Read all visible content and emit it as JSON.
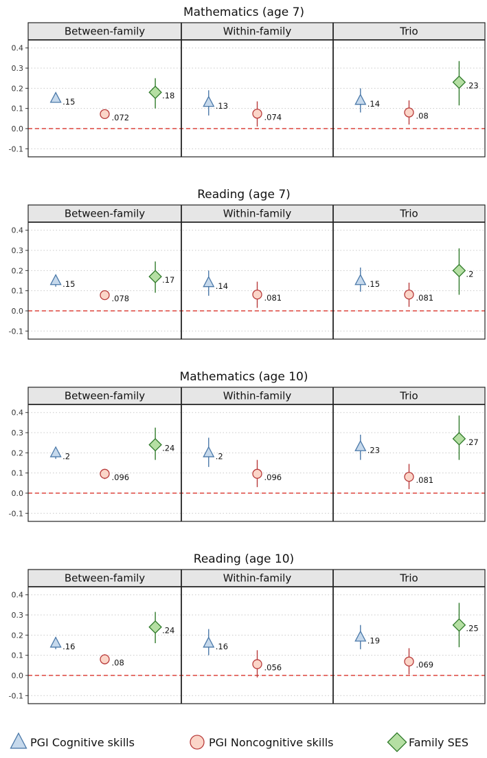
{
  "chart_data": {
    "type": "scatter",
    "subtype": "point-range (coefficient with confidence interval)",
    "y_ticks": [
      "0.4",
      "0.3",
      "0.2",
      "0.1",
      "0.0",
      "-0.1"
    ],
    "y_tick_values": [
      0.4,
      0.3,
      0.2,
      0.1,
      0.0,
      -0.1
    ],
    "ylim": [
      -0.14,
      0.44
    ],
    "reference_line": 0,
    "grid": "horizontal dotted",
    "facets": [
      "Between-family",
      "Within-family",
      "Trio"
    ],
    "legend_position": "bottom",
    "series": [
      {
        "key": "cog",
        "name": "PGI Cognitive skills",
        "marker": "triangle",
        "fill": "#c6d9ec",
        "stroke": "#4a78a8"
      },
      {
        "key": "noncog",
        "name": "PGI Noncognitive skills",
        "marker": "circle",
        "fill": "#fbd5c8",
        "stroke": "#b83a3a"
      },
      {
        "key": "ses",
        "name": "Family SES",
        "marker": "diamond",
        "fill": "#b5dfa3",
        "stroke": "#2f7a2a"
      }
    ],
    "charts": [
      {
        "title": "Mathematics (age 7)",
        "panels": [
          {
            "facet": "Between-family",
            "points": [
              {
                "series": "cog",
                "value": 0.15,
                "lo": 0.13,
                "hi": 0.17,
                "label": ".15"
              },
              {
                "series": "noncog",
                "value": 0.072,
                "lo": 0.05,
                "hi": 0.094,
                "label": ".072"
              },
              {
                "series": "ses",
                "value": 0.18,
                "lo": 0.1,
                "hi": 0.25,
                "label": ".18"
              }
            ]
          },
          {
            "facet": "Within-family",
            "points": [
              {
                "series": "cog",
                "value": 0.13,
                "lo": 0.065,
                "hi": 0.19,
                "label": ".13"
              },
              {
                "series": "noncog",
                "value": 0.074,
                "lo": 0.01,
                "hi": 0.135,
                "label": ".074"
              }
            ]
          },
          {
            "facet": "Trio",
            "points": [
              {
                "series": "cog",
                "value": 0.14,
                "lo": 0.08,
                "hi": 0.2,
                "label": ".14"
              },
              {
                "series": "noncog",
                "value": 0.08,
                "lo": 0.02,
                "hi": 0.14,
                "label": ".08"
              },
              {
                "series": "ses",
                "value": 0.23,
                "lo": 0.115,
                "hi": 0.335,
                "label": ".23"
              }
            ]
          }
        ]
      },
      {
        "title": "Reading (age 7)",
        "panels": [
          {
            "facet": "Between-family",
            "points": [
              {
                "series": "cog",
                "value": 0.15,
                "lo": 0.12,
                "hi": 0.175,
                "label": ".15"
              },
              {
                "series": "noncog",
                "value": 0.078,
                "lo": 0.055,
                "hi": 0.1,
                "label": ".078"
              },
              {
                "series": "ses",
                "value": 0.17,
                "lo": 0.09,
                "hi": 0.245,
                "label": ".17"
              }
            ]
          },
          {
            "facet": "Within-family",
            "points": [
              {
                "series": "cog",
                "value": 0.14,
                "lo": 0.075,
                "hi": 0.2,
                "label": ".14"
              },
              {
                "series": "noncog",
                "value": 0.081,
                "lo": 0.015,
                "hi": 0.145,
                "label": ".081"
              }
            ]
          },
          {
            "facet": "Trio",
            "points": [
              {
                "series": "cog",
                "value": 0.15,
                "lo": 0.095,
                "hi": 0.215,
                "label": ".15"
              },
              {
                "series": "noncog",
                "value": 0.081,
                "lo": 0.02,
                "hi": 0.14,
                "label": ".081"
              },
              {
                "series": "ses",
                "value": 0.2,
                "lo": 0.08,
                "hi": 0.31,
                "label": ".2"
              }
            ]
          }
        ]
      },
      {
        "title": "Mathematics (age 10)",
        "panels": [
          {
            "facet": "Between-family",
            "points": [
              {
                "series": "cog",
                "value": 0.2,
                "lo": 0.17,
                "hi": 0.225,
                "label": ".2"
              },
              {
                "series": "noncog",
                "value": 0.096,
                "lo": 0.07,
                "hi": 0.12,
                "label": ".096"
              },
              {
                "series": "ses",
                "value": 0.24,
                "lo": 0.165,
                "hi": 0.325,
                "label": ".24"
              }
            ]
          },
          {
            "facet": "Within-family",
            "points": [
              {
                "series": "cog",
                "value": 0.2,
                "lo": 0.13,
                "hi": 0.275,
                "label": ".2"
              },
              {
                "series": "noncog",
                "value": 0.096,
                "lo": 0.03,
                "hi": 0.165,
                "label": ".096"
              }
            ]
          },
          {
            "facet": "Trio",
            "points": [
              {
                "series": "cog",
                "value": 0.23,
                "lo": 0.165,
                "hi": 0.29,
                "label": ".23"
              },
              {
                "series": "noncog",
                "value": 0.081,
                "lo": 0.02,
                "hi": 0.145,
                "label": ".081"
              },
              {
                "series": "ses",
                "value": 0.27,
                "lo": 0.165,
                "hi": 0.385,
                "label": ".27"
              }
            ]
          }
        ]
      },
      {
        "title": "Reading (age 10)",
        "panels": [
          {
            "facet": "Between-family",
            "points": [
              {
                "series": "cog",
                "value": 0.16,
                "lo": 0.13,
                "hi": 0.19,
                "label": ".16"
              },
              {
                "series": "noncog",
                "value": 0.08,
                "lo": 0.055,
                "hi": 0.105,
                "label": ".08"
              },
              {
                "series": "ses",
                "value": 0.24,
                "lo": 0.16,
                "hi": 0.315,
                "label": ".24"
              }
            ]
          },
          {
            "facet": "Within-family",
            "points": [
              {
                "series": "cog",
                "value": 0.16,
                "lo": 0.1,
                "hi": 0.23,
                "label": ".16"
              },
              {
                "series": "noncog",
                "value": 0.056,
                "lo": -0.01,
                "hi": 0.125,
                "label": ".056"
              }
            ]
          },
          {
            "facet": "Trio",
            "points": [
              {
                "series": "cog",
                "value": 0.19,
                "lo": 0.13,
                "hi": 0.25,
                "label": ".19"
              },
              {
                "series": "noncog",
                "value": 0.069,
                "lo": 0.005,
                "hi": 0.135,
                "label": ".069"
              },
              {
                "series": "ses",
                "value": 0.25,
                "lo": 0.14,
                "hi": 0.36,
                "label": ".25"
              }
            ]
          }
        ]
      }
    ]
  }
}
